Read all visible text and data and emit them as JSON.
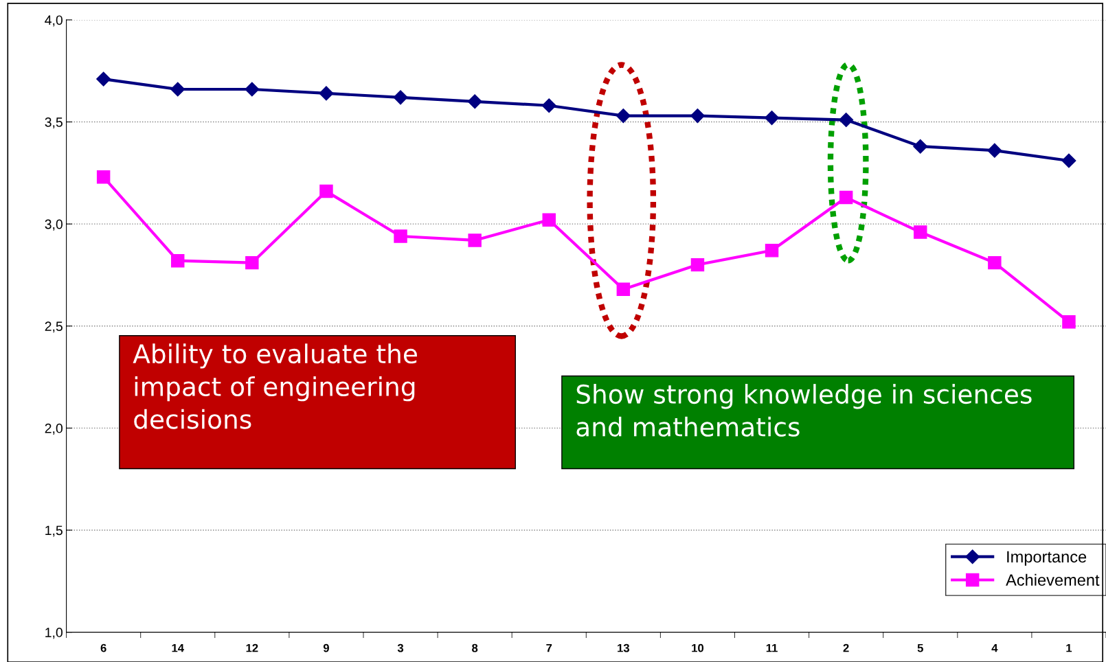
{
  "chart_data": {
    "type": "line",
    "categories": [
      "6",
      "14",
      "12",
      "9",
      "3",
      "8",
      "7",
      "13",
      "10",
      "11",
      "2",
      "5",
      "4",
      "1"
    ],
    "series": [
      {
        "name": "Importance",
        "color": "#000080",
        "marker": "diamond",
        "values": [
          3.71,
          3.66,
          3.66,
          3.64,
          3.62,
          3.6,
          3.58,
          3.53,
          3.53,
          3.52,
          3.51,
          3.38,
          3.36,
          3.31
        ]
      },
      {
        "name": "Achievement",
        "color": "#ff00ff",
        "marker": "square",
        "values": [
          3.23,
          2.82,
          2.81,
          3.16,
          2.94,
          2.92,
          3.02,
          2.68,
          2.8,
          2.87,
          3.13,
          2.96,
          2.81,
          2.52
        ]
      }
    ],
    "ylim": [
      1.0,
      4.0
    ],
    "yticks": [
      {
        "value": 1.0,
        "label": "1,0"
      },
      {
        "value": 1.5,
        "label": "1,5"
      },
      {
        "value": 2.0,
        "label": "2,0"
      },
      {
        "value": 2.5,
        "label": "2,5"
      },
      {
        "value": 3.0,
        "label": "3,0"
      },
      {
        "value": 3.5,
        "label": "3,5"
      },
      {
        "value": 4.0,
        "label": "4,0"
      }
    ],
    "grid": "y",
    "legend": "bottom right",
    "annotations": [
      "Ability to evaluate the impact of engineering decisions",
      "Show strong knowledge in sciences and mathematics"
    ]
  }
}
